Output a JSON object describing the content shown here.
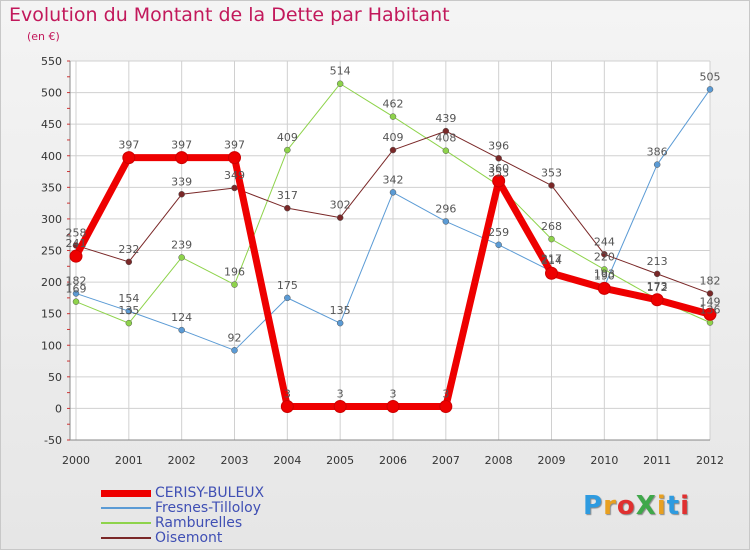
{
  "title": "Evolution du Montant de la Dette par Habitant",
  "unit": "(en €)",
  "logo": {
    "text": "ProXiti",
    "colors": [
      "#2e9be0",
      "#e8a020",
      "#e03030",
      "#3fa84a",
      "#e8a020",
      "#2e9be0",
      "#e03030"
    ]
  },
  "chart_data": {
    "type": "line",
    "x": [
      2000,
      2001,
      2002,
      2003,
      2004,
      2005,
      2006,
      2007,
      2008,
      2009,
      2010,
      2011,
      2012
    ],
    "ylim": [
      -50,
      550
    ],
    "yticks": [
      -50,
      0,
      50,
      100,
      150,
      200,
      250,
      300,
      350,
      400,
      450,
      500,
      550
    ],
    "grid": true,
    "series": [
      {
        "name": "CERISY-BULEUX",
        "color": "#ee0000",
        "width": 7,
        "marker": 6,
        "values": [
          241,
          397,
          397,
          397,
          3,
          3,
          3,
          3,
          360,
          214,
          190,
          172,
          149
        ]
      },
      {
        "name": "Fresnes-Tilloloy",
        "color": "#5b9bd5",
        "width": 1,
        "marker": 3,
        "values": [
          182,
          154,
          124,
          92,
          175,
          135,
          342,
          296,
          259,
          217,
          193,
          386,
          505
        ]
      },
      {
        "name": "Ramburelles",
        "color": "#8ed34b",
        "width": 1,
        "marker": 3,
        "values": [
          169,
          135,
          239,
          196,
          409,
          514,
          462,
          408,
          353,
          268,
          220,
          173,
          136
        ]
      },
      {
        "name": "Oisemont",
        "color": "#7a2828",
        "width": 1,
        "marker": 3,
        "values": [
          258,
          232,
          339,
          349,
          317,
          302,
          409,
          439,
          396,
          353,
          244,
          213,
          182
        ]
      }
    ]
  }
}
